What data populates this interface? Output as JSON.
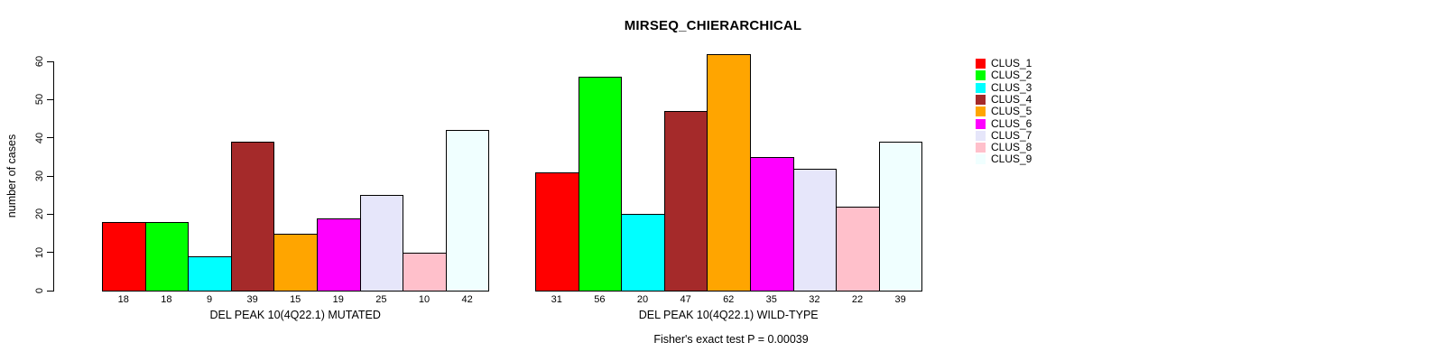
{
  "chart_data": {
    "type": "bar",
    "title": "MIRSEQ_CHIERARCHICAL",
    "ylabel": "number of cases",
    "ylim": [
      0,
      60
    ],
    "yticks": [
      0,
      10,
      20,
      30,
      40,
      50,
      60
    ],
    "grid": false,
    "legend_position": "right-outside",
    "bar_border_color": "#000000",
    "clusters": [
      "CLUS_1",
      "CLUS_2",
      "CLUS_3",
      "CLUS_4",
      "CLUS_5",
      "CLUS_6",
      "CLUS_7",
      "CLUS_8",
      "CLUS_9"
    ],
    "colors": [
      "#FF0000",
      "#00FF00",
      "#00FFFF",
      "#A52A2A",
      "#FFA500",
      "#FF00FF",
      "#E6E6FA",
      "#FFC0CB",
      "#F0FFFF"
    ],
    "categories": [
      "DEL PEAK 10(4Q22.1) MUTATED",
      "DEL PEAK 10(4Q22.1) WILD-TYPE"
    ],
    "groups": [
      {
        "label": "DEL PEAK 10(4Q22.1) MUTATED",
        "values": [
          18,
          18,
          9,
          39,
          15,
          19,
          25,
          10,
          42
        ]
      },
      {
        "label": "DEL PEAK 10(4Q22.1) WILD-TYPE",
        "values": [
          31,
          56,
          20,
          47,
          62,
          35,
          32,
          22,
          39
        ]
      }
    ],
    "footnote": "Fisher's exact test P = 0.00039"
  }
}
